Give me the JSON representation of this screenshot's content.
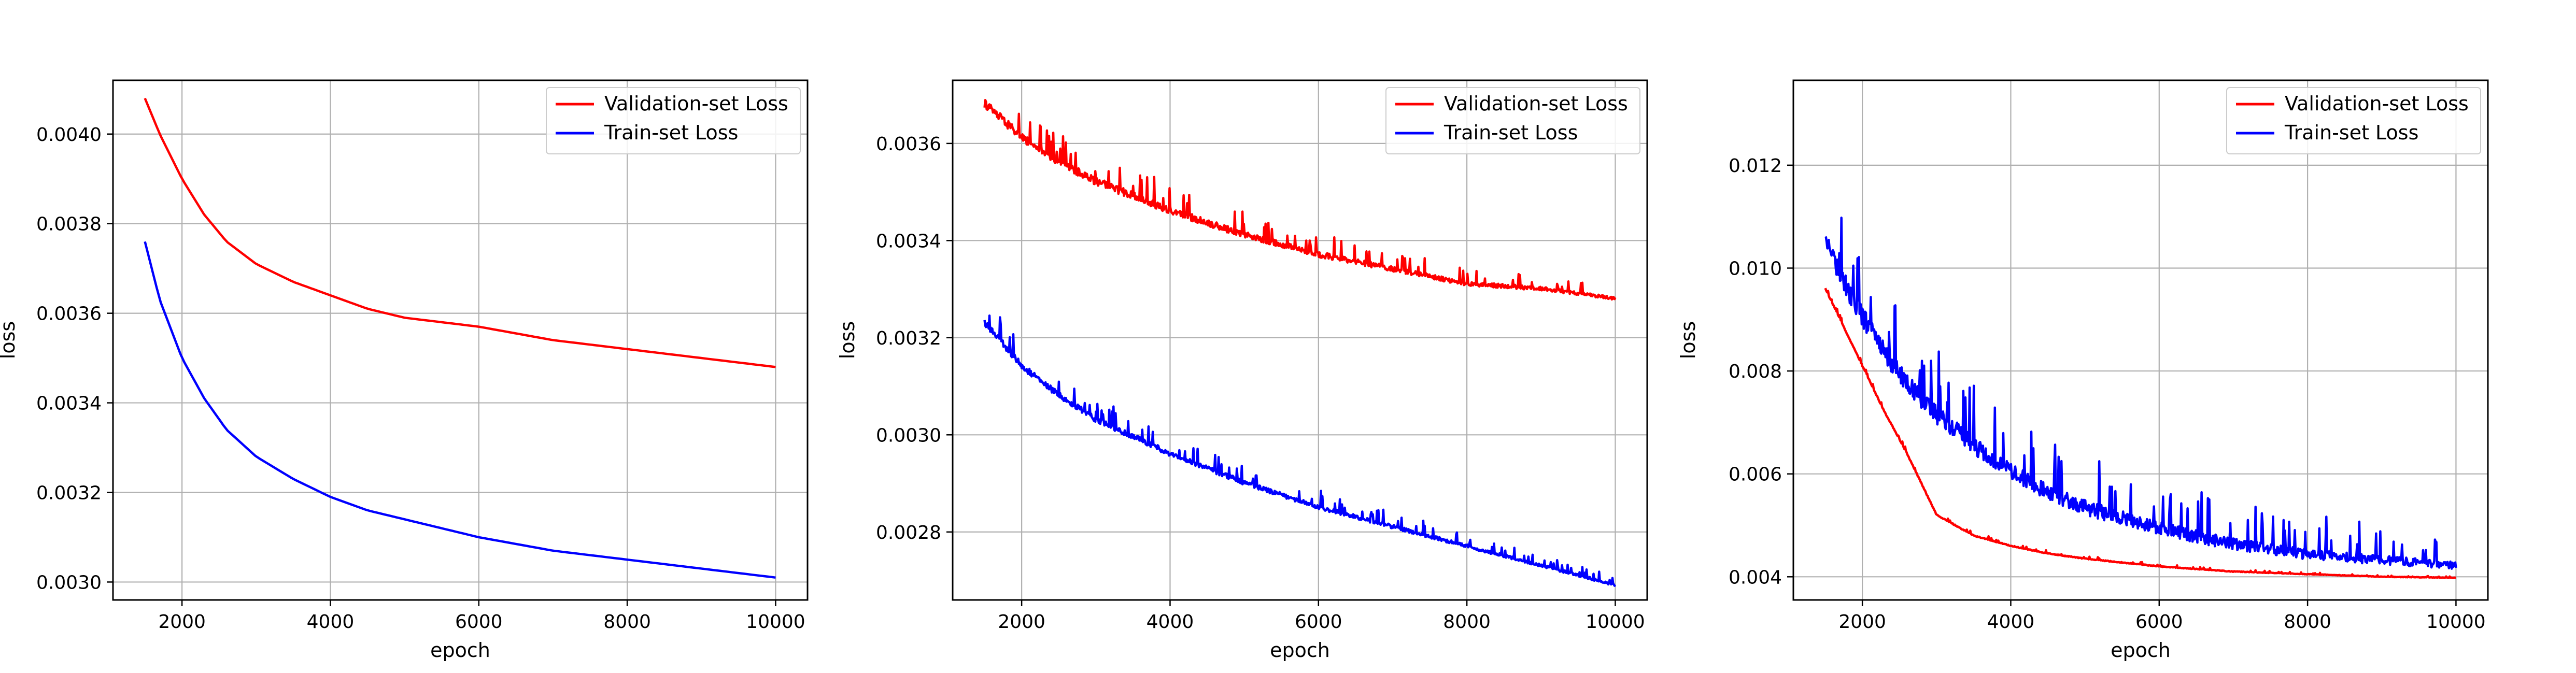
{
  "chart_data": [
    {
      "type": "line",
      "title": "",
      "xlabel": "epoch",
      "ylabel": "loss",
      "xlim": [
        1070,
        10430
      ],
      "ylim": [
        0.00296,
        0.00412
      ],
      "xticks": [
        2000,
        4000,
        6000,
        8000,
        10000
      ],
      "xtick_labels": [
        "2000",
        "4000",
        "6000",
        "8000",
        "10000"
      ],
      "yticks": [
        0.003,
        0.0032,
        0.0034,
        0.0036,
        0.0038,
        0.004
      ],
      "ytick_labels": [
        "0.0030",
        "0.0032",
        "0.0034",
        "0.0036",
        "0.0038",
        "0.0040"
      ],
      "grid": true,
      "legend_position": "top-right",
      "series": [
        {
          "name": "Validation-set Loss",
          "color": "#ff0000",
          "noise": 0,
          "x": [
            1500,
            1700,
            2000,
            2300,
            2600,
            3000,
            3500,
            4000,
            4500,
            5000,
            6000,
            7000,
            8000,
            9000,
            10000
          ],
          "values": [
            0.00408,
            0.004,
            0.0039,
            0.00382,
            0.00376,
            0.00371,
            0.00367,
            0.00364,
            0.00361,
            0.00359,
            0.00357,
            0.00354,
            0.00352,
            0.0035,
            0.00348
          ]
        },
        {
          "name": "Train-set Loss",
          "color": "#0000ff",
          "noise": 0,
          "x": [
            1500,
            1700,
            2000,
            2300,
            2600,
            3000,
            3500,
            4000,
            4500,
            5000,
            6000,
            7000,
            8000,
            9000,
            10000
          ],
          "values": [
            0.00376,
            0.00363,
            0.0035,
            0.00341,
            0.00334,
            0.00328,
            0.00323,
            0.00319,
            0.00316,
            0.00314,
            0.0031,
            0.00307,
            0.00305,
            0.00303,
            0.00301
          ]
        }
      ]
    },
    {
      "type": "line",
      "title": "",
      "xlabel": "epoch",
      "ylabel": "loss",
      "xlim": [
        1070,
        10430
      ],
      "ylim": [
        0.00266,
        0.00373
      ],
      "xticks": [
        2000,
        4000,
        6000,
        8000,
        10000
      ],
      "xtick_labels": [
        "2000",
        "4000",
        "6000",
        "8000",
        "10000"
      ],
      "yticks": [
        0.0028,
        0.003,
        0.0032,
        0.0034,
        0.0036
      ],
      "ytick_labels": [
        "0.0028",
        "0.0030",
        "0.0032",
        "0.0034",
        "0.0036"
      ],
      "grid": true,
      "legend_position": "top-right",
      "series": [
        {
          "name": "Validation-set Loss",
          "color": "#ff0000",
          "noise": 4e-05,
          "x": [
            1500,
            2000,
            2500,
            3000,
            4000,
            5000,
            6000,
            7000,
            8000,
            9000,
            10000
          ],
          "values": [
            0.00368,
            0.00361,
            0.00356,
            0.00352,
            0.00346,
            0.00341,
            0.00337,
            0.00334,
            0.00331,
            0.0033,
            0.00328
          ]
        },
        {
          "name": "Train-set Loss",
          "color": "#0000ff",
          "noise": 3e-05,
          "x": [
            1500,
            2000,
            2500,
            3000,
            4000,
            5000,
            6000,
            7000,
            8000,
            9000,
            10000
          ],
          "values": [
            0.00323,
            0.00314,
            0.00308,
            0.00303,
            0.00296,
            0.0029,
            0.00285,
            0.00281,
            0.00277,
            0.00273,
            0.00269
          ]
        }
      ]
    },
    {
      "type": "line",
      "title": "",
      "xlabel": "epoch",
      "ylabel": "loss",
      "xlim": [
        1070,
        10430
      ],
      "ylim": [
        0.00355,
        0.01365
      ],
      "xticks": [
        2000,
        4000,
        6000,
        8000,
        10000
      ],
      "xtick_labels": [
        "2000",
        "4000",
        "6000",
        "8000",
        "10000"
      ],
      "yticks": [
        0.004,
        0.006,
        0.008,
        0.01,
        0.012
      ],
      "ytick_labels": [
        "0.004",
        "0.006",
        "0.008",
        "0.010",
        "0.012"
      ],
      "grid": true,
      "legend_position": "top-right",
      "series": [
        {
          "name": "Validation-set Loss",
          "color": "#ff0000",
          "noise": 5e-05,
          "x": [
            1500,
            1700,
            2000,
            2300,
            2600,
            2800,
            3000,
            3500,
            4000,
            4500,
            5000,
            6000,
            7000,
            8000,
            9000,
            10000
          ],
          "values": [
            0.0096,
            0.009,
            0.0081,
            0.0072,
            0.0064,
            0.0058,
            0.0052,
            0.0048,
            0.0046,
            0.00445,
            0.00435,
            0.0042,
            0.0041,
            0.00405,
            0.004,
            0.00398
          ]
        },
        {
          "name": "Train-set Loss",
          "color": "#0000ff",
          "noise": 0.0009,
          "x": [
            1500,
            1700,
            2000,
            2300,
            2600,
            3000,
            3500,
            4000,
            4500,
            5000,
            6000,
            7000,
            8000,
            9000,
            10000
          ],
          "values": [
            0.0105,
            0.0098,
            0.009,
            0.0083,
            0.0077,
            0.0071,
            0.0065,
            0.006,
            0.0056,
            0.0053,
            0.0049,
            0.0046,
            0.0044,
            0.0043,
            0.0042
          ]
        }
      ]
    }
  ]
}
